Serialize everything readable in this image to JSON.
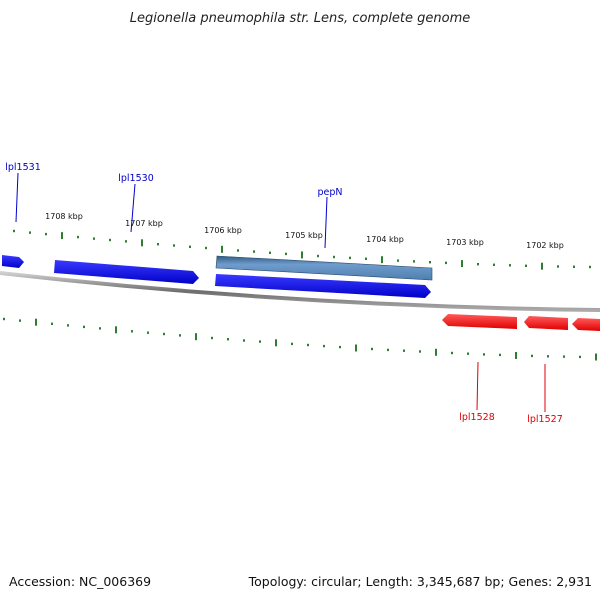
{
  "title": "Legionella pneumophila str. Lens, complete genome",
  "footer": {
    "accession": "Accession: NC_006369",
    "summary": "Topology: circular; Length: 3,345,687 bp; Genes: 2,931"
  },
  "colors": {
    "forward": "#0000e6",
    "forward_selected": "#5a8fbf",
    "reverse": "#ff0000",
    "backbone": "#888888",
    "ticks": "#2e7d32",
    "label_forward": "#0000cc",
    "label_reverse": "#dd0000"
  },
  "scale_labels": [
    "1708 kbp",
    "1707 kbp",
    "1706 kbp",
    "1705 kbp",
    "1704 kbp",
    "1703 kbp",
    "1702 kbp"
  ],
  "gene_labels": {
    "forward": [
      "lpl1531",
      "lpl1530",
      "pepN"
    ],
    "reverse": [
      "lpl1528",
      "lpl1527"
    ]
  }
}
